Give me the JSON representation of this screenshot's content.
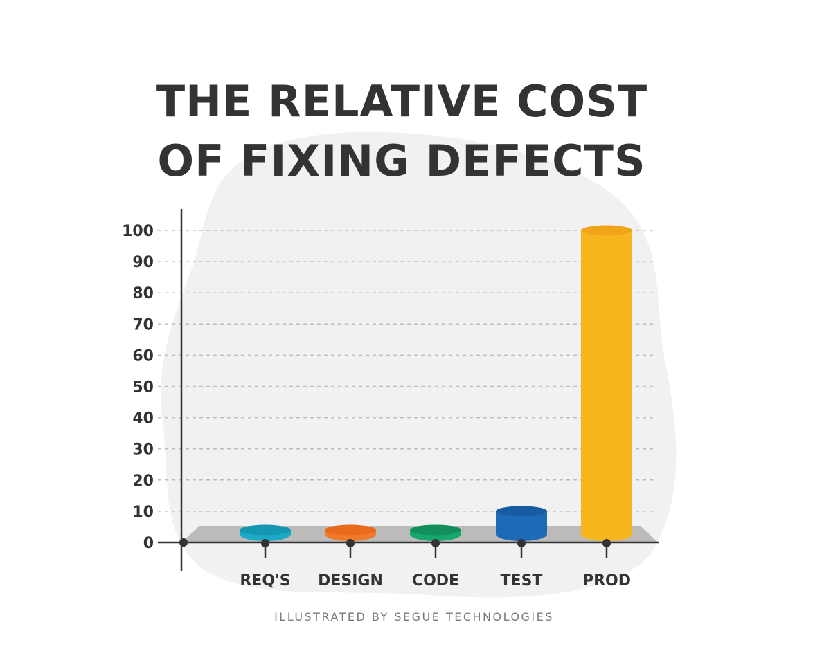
{
  "chart_data": {
    "type": "bar",
    "title_lines": [
      "THE RELATIVE COST",
      "OF FIXING DEFECTS"
    ],
    "categories": [
      "REQ'S",
      "DESIGN",
      "CODE",
      "TEST",
      "PROD"
    ],
    "values": [
      1,
      1,
      4,
      10,
      100
    ],
    "colors": [
      "#1aa9c6",
      "#f07a2b",
      "#17a86b",
      "#1d6ab8",
      "#f7b61e"
    ],
    "cap_colors": [
      "#1697b1",
      "#e86a1a",
      "#128f5a",
      "#175ca3",
      "#f0a418"
    ],
    "yticks": [
      0,
      10,
      20,
      30,
      40,
      50,
      60,
      70,
      80,
      90,
      100
    ],
    "ylim": [
      0,
      100
    ],
    "grid": true,
    "xlabel": "",
    "ylabel": ""
  },
  "credit": "ILLUSTRATED BY SEGUE TECHNOLOGIES"
}
